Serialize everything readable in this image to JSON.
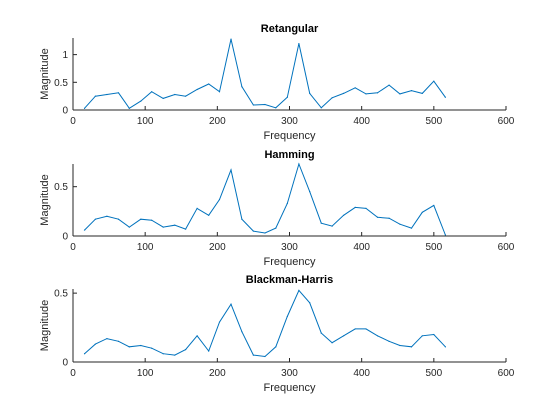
{
  "chart_data": [
    {
      "type": "line",
      "title": "Retangular",
      "xlabel": "Frequency",
      "ylabel": "Magnitude",
      "xlim": [
        0,
        600
      ],
      "ylim": [
        0,
        1.3
      ],
      "xticks": [
        0,
        100,
        200,
        300,
        400,
        500,
        600
      ],
      "yticks": [
        0,
        0.5,
        1
      ],
      "ytick_labels": [
        "0",
        "0.5",
        "1"
      ],
      "grid": false,
      "color": "#0072BD",
      "series": [
        {
          "x": [
            16,
            31,
            47,
            63,
            78,
            94,
            109,
            125,
            141,
            156,
            172,
            188,
            203,
            219,
            234,
            250,
            266,
            281,
            297,
            313,
            328,
            344,
            359,
            375,
            391,
            406,
            422,
            438,
            453,
            469,
            484,
            500,
            516
          ],
          "values": [
            0.03,
            0.25,
            0.28,
            0.31,
            0.03,
            0.16,
            0.33,
            0.21,
            0.28,
            0.25,
            0.37,
            0.47,
            0.33,
            1.28,
            0.42,
            0.09,
            0.1,
            0.04,
            0.23,
            1.2,
            0.3,
            0.04,
            0.22,
            0.3,
            0.4,
            0.29,
            0.31,
            0.45,
            0.29,
            0.35,
            0.3,
            0.52,
            0.23
          ]
        }
      ]
    },
    {
      "type": "line",
      "title": "Hamming",
      "xlabel": "Frequency",
      "ylabel": "Magnitude",
      "xlim": [
        0,
        600
      ],
      "ylim": [
        0,
        0.73
      ],
      "xticks": [
        0,
        100,
        200,
        300,
        400,
        500,
        600
      ],
      "yticks": [
        0,
        0.5
      ],
      "ytick_labels": [
        "0",
        "0.5"
      ],
      "grid": false,
      "color": "#0072BD",
      "series": [
        {
          "x": [
            16,
            31,
            47,
            63,
            78,
            94,
            109,
            125,
            141,
            156,
            172,
            188,
            203,
            219,
            234,
            250,
            266,
            281,
            297,
            313,
            328,
            344,
            359,
            375,
            391,
            406,
            422,
            438,
            453,
            469,
            484,
            500,
            516
          ],
          "values": [
            0.06,
            0.17,
            0.2,
            0.17,
            0.09,
            0.17,
            0.16,
            0.09,
            0.11,
            0.07,
            0.28,
            0.21,
            0.37,
            0.67,
            0.17,
            0.05,
            0.03,
            0.08,
            0.33,
            0.73,
            0.45,
            0.13,
            0.1,
            0.21,
            0.29,
            0.28,
            0.19,
            0.18,
            0.12,
            0.08,
            0.24,
            0.31,
            0.01
          ]
        }
      ]
    },
    {
      "type": "line",
      "title": "Blackman-Harris",
      "xlabel": "Frequency",
      "ylabel": "Magnitude",
      "xlim": [
        0,
        600
      ],
      "ylim": [
        0,
        0.53
      ],
      "xticks": [
        0,
        100,
        200,
        300,
        400,
        500,
        600
      ],
      "yticks": [
        0,
        0.5
      ],
      "ytick_labels": [
        "0",
        "0.5"
      ],
      "grid": false,
      "color": "#0072BD",
      "series": [
        {
          "x": [
            16,
            31,
            47,
            63,
            78,
            94,
            109,
            125,
            141,
            156,
            172,
            188,
            203,
            219,
            234,
            250,
            266,
            281,
            297,
            313,
            328,
            344,
            359,
            375,
            391,
            406,
            422,
            438,
            453,
            469,
            484,
            500,
            516
          ],
          "values": [
            0.06,
            0.13,
            0.17,
            0.15,
            0.11,
            0.12,
            0.1,
            0.06,
            0.05,
            0.09,
            0.19,
            0.08,
            0.29,
            0.42,
            0.22,
            0.05,
            0.04,
            0.11,
            0.33,
            0.52,
            0.43,
            0.21,
            0.14,
            0.19,
            0.24,
            0.24,
            0.19,
            0.15,
            0.12,
            0.11,
            0.19,
            0.2,
            0.11
          ]
        }
      ]
    }
  ]
}
